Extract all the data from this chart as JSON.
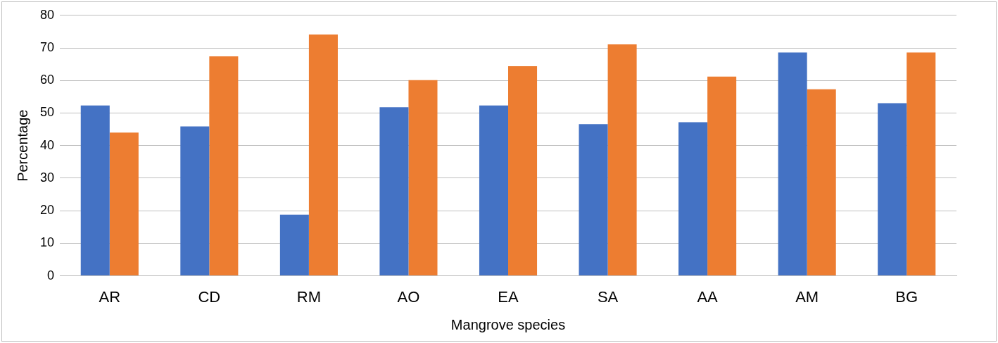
{
  "chart_data": {
    "type": "bar",
    "xlabel": "Mangrove species",
    "ylabel": "Percentage",
    "categories": [
      "AR",
      "CD",
      "RM",
      "AO",
      "EA",
      "SA",
      "AA",
      "AM",
      "BG"
    ],
    "series": [
      {
        "color": "#4472c4",
        "values": [
          52.3,
          45.9,
          18.8,
          51.8,
          52.3,
          46.6,
          47.2,
          68.6,
          53.0
        ]
      },
      {
        "color": "#ed7d31",
        "values": [
          44.0,
          67.4,
          74.1,
          60.1,
          64.4,
          71.1,
          61.2,
          57.3,
          68.6
        ]
      }
    ],
    "ylim": [
      0,
      80
    ],
    "yticks": [
      0,
      10,
      20,
      30,
      40,
      50,
      60,
      70,
      80
    ],
    "grid": "y",
    "legend": false
  }
}
